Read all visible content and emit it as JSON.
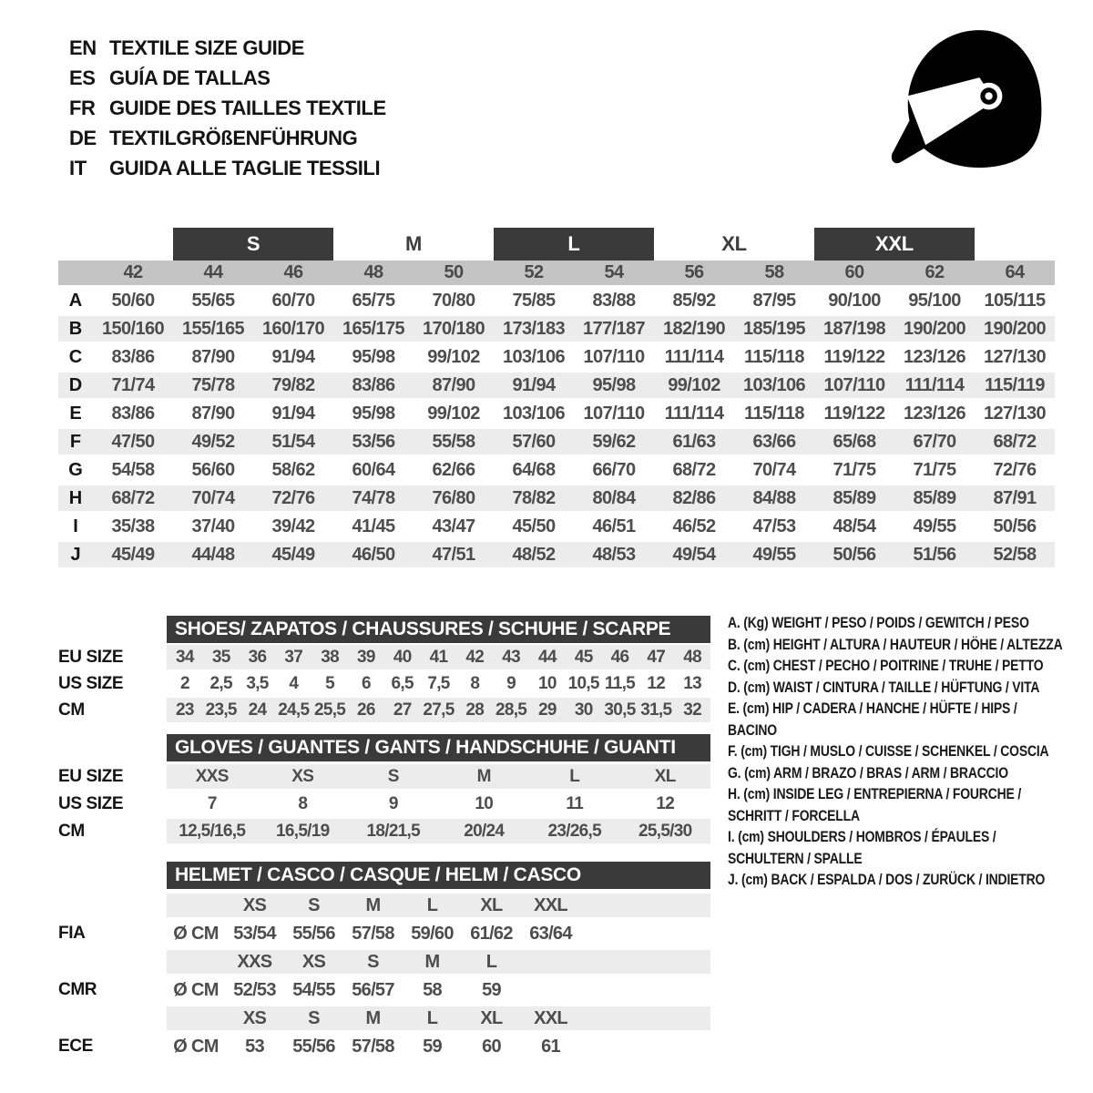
{
  "colors": {
    "bar": "#3a3a3a",
    "band": "#c4c4c4",
    "stripe": "#ececec",
    "num": "#4d4d4d",
    "ink": "#141414"
  },
  "header": {
    "languages": [
      {
        "code": "EN",
        "title": "TEXTILE SIZE GUIDE"
      },
      {
        "code": "ES",
        "title": "GUÍA DE TALLAS"
      },
      {
        "code": "FR",
        "title": "GUIDE DES TAILLES TEXTILE"
      },
      {
        "code": "DE",
        "title": "TEXTILGRÖßENFÜHRUNG"
      },
      {
        "code": "IT",
        "title": "GUIDA ALLE TAGLIE TESSILI"
      }
    ],
    "icon": "racing-helmet"
  },
  "main_table": {
    "size_groups": [
      {
        "label": "S",
        "boxed": true
      },
      {
        "label": "M",
        "boxed": false
      },
      {
        "label": "L",
        "boxed": true
      },
      {
        "label": "XL",
        "boxed": false
      },
      {
        "label": "XXL",
        "boxed": true
      }
    ],
    "columns": [
      "42",
      "44",
      "46",
      "48",
      "50",
      "52",
      "54",
      "56",
      "58",
      "60",
      "62",
      "64"
    ],
    "rows": [
      {
        "letter": "A",
        "values": [
          "50/60",
          "55/65",
          "60/70",
          "65/75",
          "70/80",
          "75/85",
          "83/88",
          "85/92",
          "87/95",
          "90/100",
          "95/100",
          "105/115"
        ]
      },
      {
        "letter": "B",
        "values": [
          "150/160",
          "155/165",
          "160/170",
          "165/175",
          "170/180",
          "173/183",
          "177/187",
          "182/190",
          "185/195",
          "187/198",
          "190/200",
          "190/200"
        ]
      },
      {
        "letter": "C",
        "values": [
          "83/86",
          "87/90",
          "91/94",
          "95/98",
          "99/102",
          "103/106",
          "107/110",
          "111/114",
          "115/118",
          "119/122",
          "123/126",
          "127/130"
        ]
      },
      {
        "letter": "D",
        "values": [
          "71/74",
          "75/78",
          "79/82",
          "83/86",
          "87/90",
          "91/94",
          "95/98",
          "99/102",
          "103/106",
          "107/110",
          "111/114",
          "115/119"
        ]
      },
      {
        "letter": "E",
        "values": [
          "83/86",
          "87/90",
          "91/94",
          "95/98",
          "99/102",
          "103/106",
          "107/110",
          "111/114",
          "115/118",
          "119/122",
          "123/126",
          "127/130"
        ]
      },
      {
        "letter": "F",
        "values": [
          "47/50",
          "49/52",
          "51/54",
          "53/56",
          "55/58",
          "57/60",
          "59/62",
          "61/63",
          "63/66",
          "65/68",
          "67/70",
          "68/72"
        ]
      },
      {
        "letter": "G",
        "values": [
          "54/58",
          "56/60",
          "58/62",
          "60/64",
          "62/66",
          "64/68",
          "66/70",
          "68/72",
          "70/74",
          "71/75",
          "71/75",
          "72/76"
        ]
      },
      {
        "letter": "H",
        "values": [
          "68/72",
          "70/74",
          "72/76",
          "74/78",
          "76/80",
          "78/82",
          "80/84",
          "82/86",
          "84/88",
          "85/89",
          "85/89",
          "87/91"
        ]
      },
      {
        "letter": "I",
        "values": [
          "35/38",
          "37/40",
          "39/42",
          "41/45",
          "43/47",
          "45/50",
          "46/51",
          "46/52",
          "47/53",
          "48/54",
          "49/55",
          "50/56"
        ]
      },
      {
        "letter": "J",
        "values": [
          "45/49",
          "44/48",
          "45/49",
          "46/50",
          "47/51",
          "48/52",
          "48/53",
          "49/54",
          "49/55",
          "50/56",
          "51/56",
          "52/58"
        ]
      }
    ]
  },
  "shoes": {
    "title": "SHOES/ ZAPATOS / CHAUSSURES / SCHUHE / SCARPE",
    "rows": [
      {
        "label": "EU SIZE",
        "shaded": true,
        "values": [
          "34",
          "35",
          "36",
          "37",
          "38",
          "39",
          "40",
          "41",
          "42",
          "43",
          "44",
          "45",
          "46",
          "47",
          "48"
        ]
      },
      {
        "label": "US SIZE",
        "shaded": false,
        "values": [
          "2",
          "2,5",
          "3,5",
          "4",
          "5",
          "6",
          "6,5",
          "7,5",
          "8",
          "9",
          "10",
          "10,5",
          "11,5",
          "12",
          "13"
        ]
      },
      {
        "label": "CM",
        "shaded": true,
        "values": [
          "23",
          "23,5",
          "24",
          "24,5",
          "25,5",
          "26",
          "27",
          "27,5",
          "28",
          "28,5",
          "29",
          "30",
          "30,5",
          "31,5",
          "32"
        ]
      }
    ]
  },
  "gloves": {
    "title": "GLOVES / GUANTES / GANTS / HANDSCHUHE / GUANTI",
    "rows": [
      {
        "label": "EU SIZE",
        "shaded": true,
        "values": [
          "XXS",
          "XS",
          "S",
          "M",
          "L",
          "XL"
        ]
      },
      {
        "label": "US SIZE",
        "shaded": false,
        "values": [
          "7",
          "8",
          "9",
          "10",
          "11",
          "12"
        ]
      },
      {
        "label": "CM",
        "shaded": true,
        "values": [
          "12,5/16,5",
          "16,5/19",
          "18/21,5",
          "20/24",
          "23/26,5",
          "25,5/30"
        ]
      }
    ]
  },
  "helmet": {
    "title": "HELMET / CASCO / CASQUE / HELM / CASCO",
    "rows": [
      {
        "label": "",
        "unit": "",
        "shaded": true,
        "sizes": true,
        "values": [
          "XS",
          "S",
          "M",
          "L",
          "XL",
          "XXL"
        ]
      },
      {
        "label": "FIA",
        "unit": "Ø CM",
        "shaded": false,
        "sizes": false,
        "values": [
          "53/54",
          "55/56",
          "57/58",
          "59/60",
          "61/62",
          "63/64"
        ]
      },
      {
        "label": "",
        "unit": "",
        "shaded": true,
        "sizes": true,
        "values": [
          "XXS",
          "XS",
          "S",
          "M",
          "L",
          ""
        ]
      },
      {
        "label": "CMR",
        "unit": "Ø CM",
        "shaded": false,
        "sizes": false,
        "values": [
          "52/53",
          "54/55",
          "56/57",
          "58",
          "59",
          ""
        ]
      },
      {
        "label": "",
        "unit": "",
        "shaded": true,
        "sizes": true,
        "values": [
          "XS",
          "S",
          "M",
          "L",
          "XL",
          "XXL"
        ]
      },
      {
        "label": "ECE",
        "unit": "Ø CM",
        "shaded": false,
        "sizes": false,
        "values": [
          "53",
          "55/56",
          "57/58",
          "59",
          "60",
          "61"
        ]
      }
    ]
  },
  "legend": {
    "items": [
      "A. (Kg) WEIGHT / PESO / POIDS / GEWITCH / PESO",
      "B. (cm) HEIGHT / ALTURA / HAUTEUR / HÖHE / ALTEZZA",
      "C. (cm) CHEST / PECHO / POITRINE / TRUHE / PETTO",
      "D. (cm) WAIST / CINTURA / TAILLE / HÜFTUNG / VITA",
      "E. (cm) HIP / CADERA / HANCHE / HÜFTE / HIPS /  BACINO",
      "F. (cm) TIGH / MUSLO / CUISSE / SCHENKEL / COSCIA",
      "G. (cm) ARM  / BRAZO / BRAS / ARM / BRACCIO",
      "H. (cm) INSIDE LEG / ENTREPIERNA / FOURCHE / SCHRITT / FORCELLA",
      "I.  (cm) SHOULDERS / HOMBROS / ÉPAULES / SCHULTERN / SPALLE",
      "J. (cm) BACK / ESPALDA / DOS / ZURÜCK / INDIETRO"
    ]
  }
}
